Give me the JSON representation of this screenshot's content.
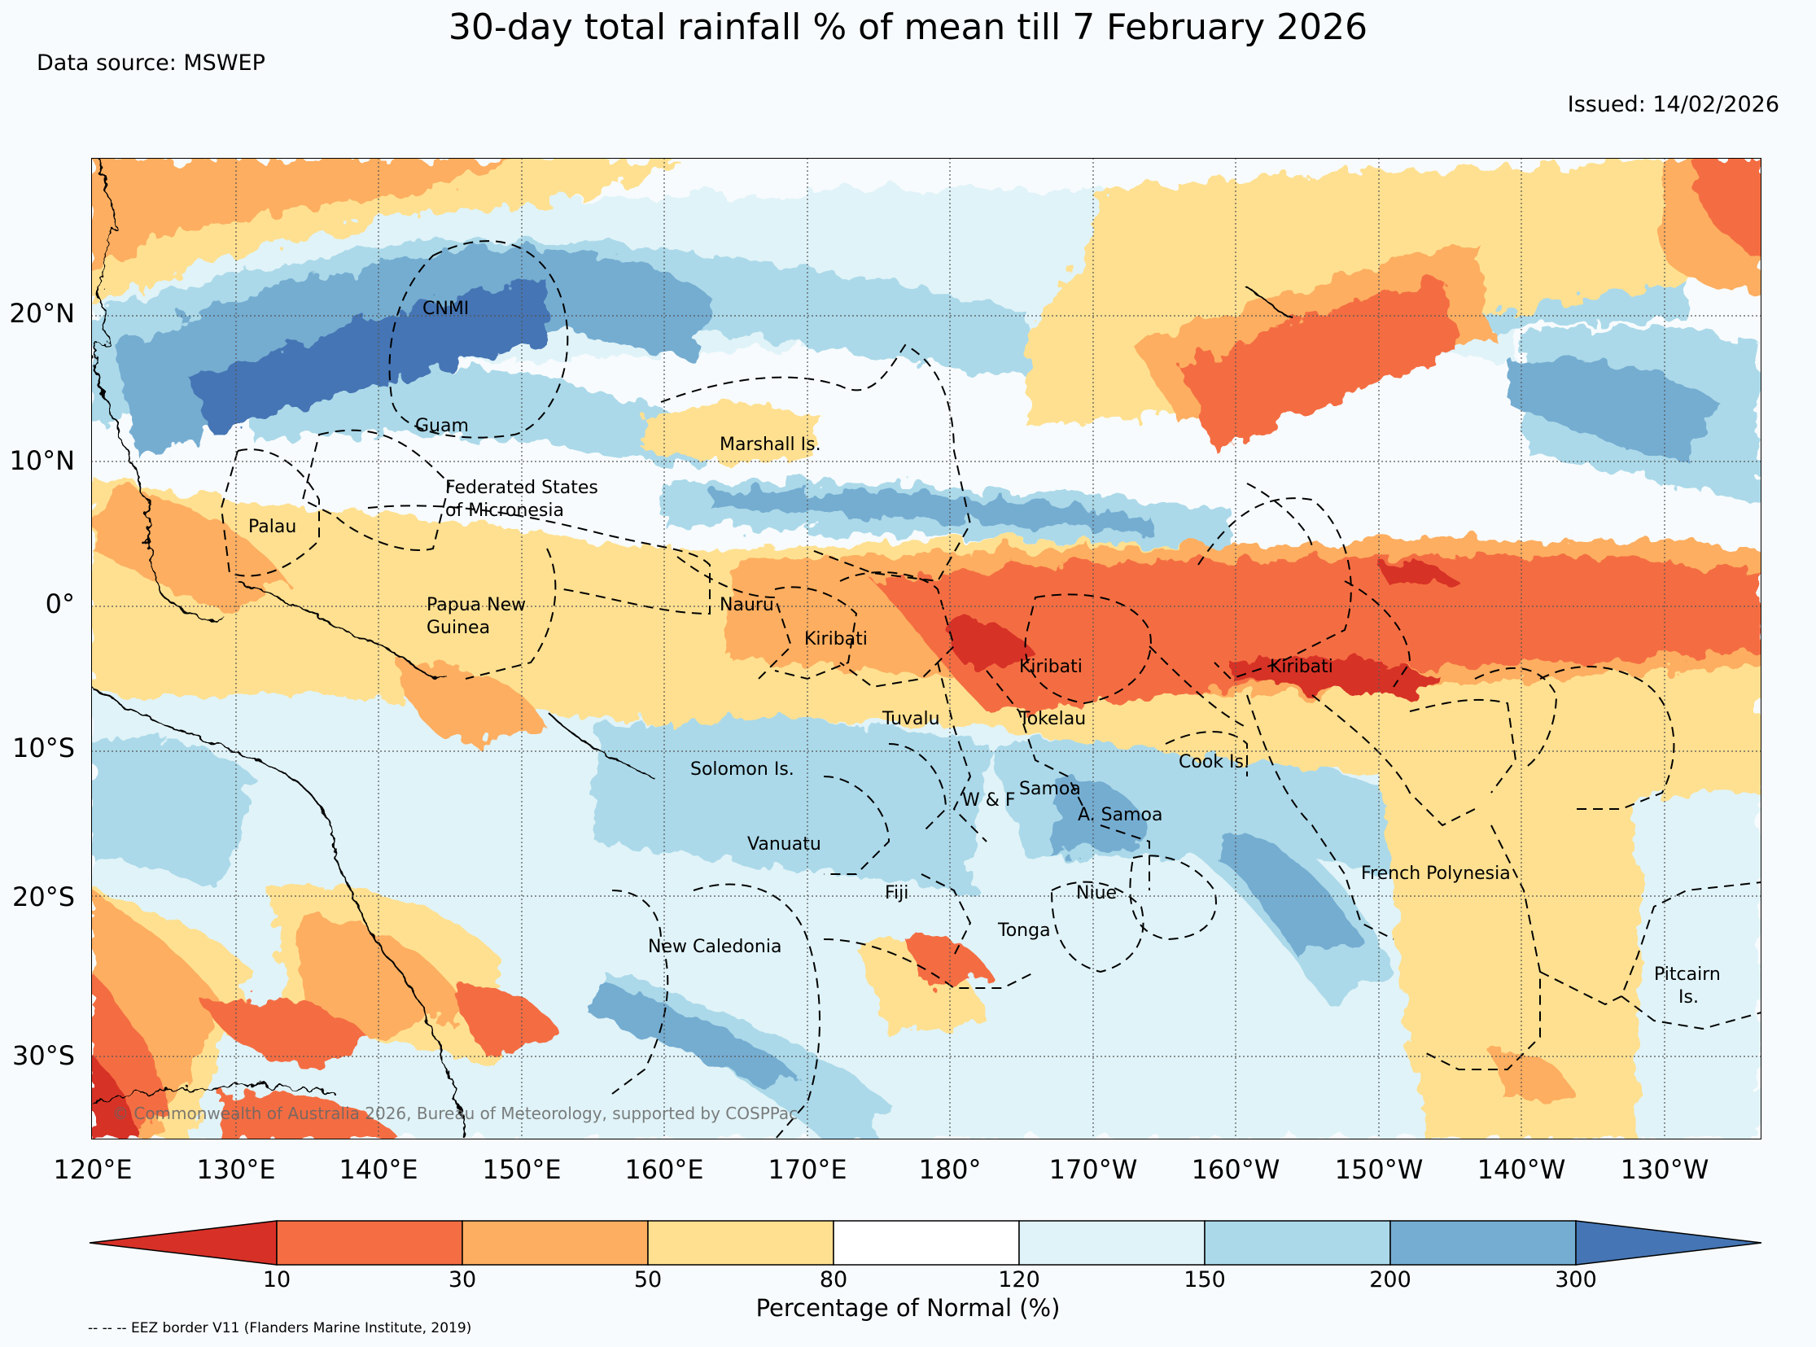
{
  "title": "30-day total rainfall % of mean till 7 February 2026",
  "data_source": "Data source: MSWEP",
  "issued": "Issued: 14/02/2026",
  "copyright": "© Commonwealth of Australia 2026, Bureau of Meteorology, supported by COSPPac",
  "eez_note": "-- -- -- EEZ border V11 (Flanders Marine Institute, 2019)",
  "lat_labels": [
    "20°N",
    "10°N",
    "0°",
    "10°S",
    "20°S",
    "30°S"
  ],
  "lon_labels": [
    "120°E",
    "130°E",
    "140°E",
    "150°E",
    "160°E",
    "170°E",
    "180°",
    "170°W",
    "160°W",
    "150°W",
    "140°W",
    "130°W"
  ],
  "region_labels": {
    "cnmi": "CNMI",
    "guam": "Guam",
    "marshall": "Marshall Is.",
    "fsm_1": "Federated States",
    "fsm_2": "of Micronesia",
    "palau": "Palau",
    "png_1": "Papua New",
    "png_2": "Guinea",
    "nauru": "Nauru",
    "kiribati_w": "Kiribati",
    "kiribati_c": "Kiribati",
    "kiribati_e": "Kiribati",
    "tuvalu": "Tuvalu",
    "tokelau": "Tokelau",
    "solomon": "Solomon Is.",
    "samoa": "Samoa",
    "wf": "W & F",
    "am_samoa": "A. Samoa",
    "cook": "Cook Is.",
    "vanuatu": "Vanuatu",
    "fiji": "Fiji",
    "niue": "Niue",
    "tonga": "Tonga",
    "french_polynesia": "French Polynesia",
    "new_caledonia": "New Caledonia",
    "pitcairn_1": "Pitcairn",
    "pitcairn_2": "Is."
  },
  "colorbar": {
    "title": "Percentage of Normal (%)",
    "ticks": [
      "10",
      "30",
      "50",
      "80",
      "120",
      "150",
      "200",
      "300"
    ],
    "colors": {
      "below_10": "#d73027",
      "10_30": "#f46d43",
      "30_50": "#fdae61",
      "50_80": "#fee090",
      "80_120": "#ffffff",
      "120_150": "#e0f3f8",
      "150_200": "#abd9e9",
      "200_300": "#74add1",
      "above_300": "#4575b4"
    }
  }
}
